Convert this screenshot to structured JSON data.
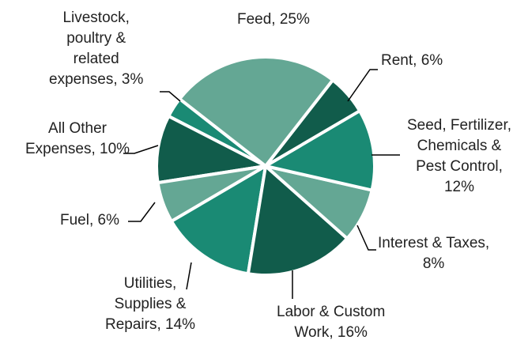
{
  "chart_data": {
    "type": "pie",
    "values": [
      25,
      6,
      12,
      8,
      16,
      14,
      6,
      10,
      3
    ],
    "value_labels": [
      "Feed, 25%",
      "Rent, 6%",
      "Seed, Fertilizer,\nChemicals &\nPest Control,\n12%",
      "Interest & Taxes,\n8%",
      "Labor & Custom\nWork, 16%",
      "Utilities,\nSupplies &\nRepairs, 14%",
      "Fuel, 6%",
      "All Other\nExpenses, 10%",
      "Livestock,\npoultry &\nrelated\nexpenses, 3%"
    ],
    "colors": [
      "#64a794",
      "#115c4b",
      "#1a8a74",
      "#64a794",
      "#115c4b",
      "#1a8a74",
      "#64a794",
      "#115c4b",
      "#1a8a74"
    ]
  }
}
